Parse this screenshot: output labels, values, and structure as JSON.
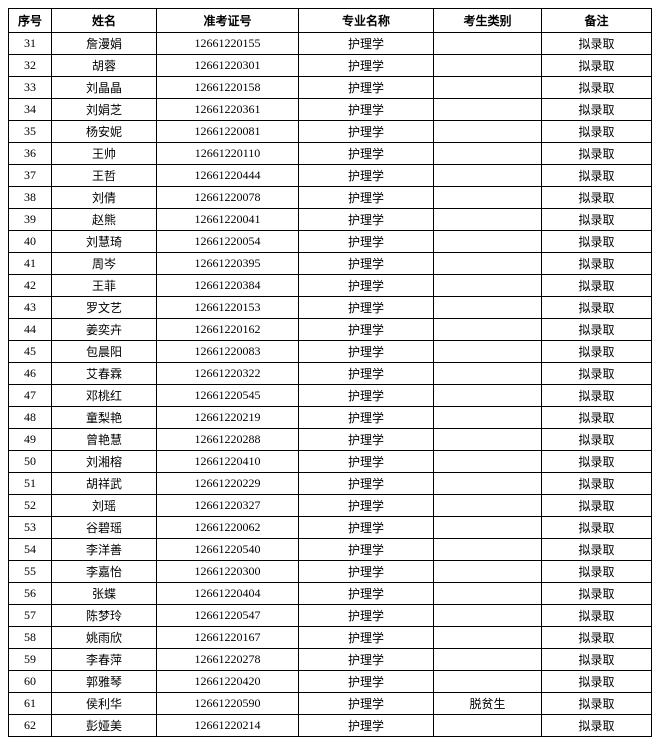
{
  "table": {
    "columns": [
      {
        "key": "seq",
        "label": "序号",
        "class": "col-seq"
      },
      {
        "key": "name",
        "label": "姓名",
        "class": "col-name"
      },
      {
        "key": "id",
        "label": "准考证号",
        "class": "col-id"
      },
      {
        "key": "major",
        "label": "专业名称",
        "class": "col-major"
      },
      {
        "key": "category",
        "label": "考生类别",
        "class": "col-category"
      },
      {
        "key": "remark",
        "label": "备注",
        "class": "col-remark"
      }
    ],
    "rows": [
      {
        "seq": "31",
        "name": "詹漫娟",
        "id": "12661220155",
        "major": "护理学",
        "category": "",
        "remark": "拟录取"
      },
      {
        "seq": "32",
        "name": "胡蓉",
        "id": "12661220301",
        "major": "护理学",
        "category": "",
        "remark": "拟录取"
      },
      {
        "seq": "33",
        "name": "刘晶晶",
        "id": "12661220158",
        "major": "护理学",
        "category": "",
        "remark": "拟录取"
      },
      {
        "seq": "34",
        "name": "刘娟芝",
        "id": "12661220361",
        "major": "护理学",
        "category": "",
        "remark": "拟录取"
      },
      {
        "seq": "35",
        "name": "杨安妮",
        "id": "12661220081",
        "major": "护理学",
        "category": "",
        "remark": "拟录取"
      },
      {
        "seq": "36",
        "name": "王帅",
        "id": "12661220110",
        "major": "护理学",
        "category": "",
        "remark": "拟录取"
      },
      {
        "seq": "37",
        "name": "王哲",
        "id": "12661220444",
        "major": "护理学",
        "category": "",
        "remark": "拟录取"
      },
      {
        "seq": "38",
        "name": "刘倩",
        "id": "12661220078",
        "major": "护理学",
        "category": "",
        "remark": "拟录取"
      },
      {
        "seq": "39",
        "name": "赵熊",
        "id": "12661220041",
        "major": "护理学",
        "category": "",
        "remark": "拟录取"
      },
      {
        "seq": "40",
        "name": "刘慧琦",
        "id": "12661220054",
        "major": "护理学",
        "category": "",
        "remark": "拟录取"
      },
      {
        "seq": "41",
        "name": "周岑",
        "id": "12661220395",
        "major": "护理学",
        "category": "",
        "remark": "拟录取"
      },
      {
        "seq": "42",
        "name": "王菲",
        "id": "12661220384",
        "major": "护理学",
        "category": "",
        "remark": "拟录取"
      },
      {
        "seq": "43",
        "name": "罗文艺",
        "id": "12661220153",
        "major": "护理学",
        "category": "",
        "remark": "拟录取"
      },
      {
        "seq": "44",
        "name": "姜奕卉",
        "id": "12661220162",
        "major": "护理学",
        "category": "",
        "remark": "拟录取"
      },
      {
        "seq": "45",
        "name": "包晨阳",
        "id": "12661220083",
        "major": "护理学",
        "category": "",
        "remark": "拟录取"
      },
      {
        "seq": "46",
        "name": "艾春霖",
        "id": "12661220322",
        "major": "护理学",
        "category": "",
        "remark": "拟录取"
      },
      {
        "seq": "47",
        "name": "邓桃红",
        "id": "12661220545",
        "major": "护理学",
        "category": "",
        "remark": "拟录取"
      },
      {
        "seq": "48",
        "name": "童梨艳",
        "id": "12661220219",
        "major": "护理学",
        "category": "",
        "remark": "拟录取"
      },
      {
        "seq": "49",
        "name": "曾艳慧",
        "id": "12661220288",
        "major": "护理学",
        "category": "",
        "remark": "拟录取"
      },
      {
        "seq": "50",
        "name": "刘湘榕",
        "id": "12661220410",
        "major": "护理学",
        "category": "",
        "remark": "拟录取"
      },
      {
        "seq": "51",
        "name": "胡祥武",
        "id": "12661220229",
        "major": "护理学",
        "category": "",
        "remark": "拟录取"
      },
      {
        "seq": "52",
        "name": "刘瑶",
        "id": "12661220327",
        "major": "护理学",
        "category": "",
        "remark": "拟录取"
      },
      {
        "seq": "53",
        "name": "谷碧瑶",
        "id": "12661220062",
        "major": "护理学",
        "category": "",
        "remark": "拟录取"
      },
      {
        "seq": "54",
        "name": "李洋善",
        "id": "12661220540",
        "major": "护理学",
        "category": "",
        "remark": "拟录取"
      },
      {
        "seq": "55",
        "name": "李嘉怡",
        "id": "12661220300",
        "major": "护理学",
        "category": "",
        "remark": "拟录取"
      },
      {
        "seq": "56",
        "name": "张蝶",
        "id": "12661220404",
        "major": "护理学",
        "category": "",
        "remark": "拟录取"
      },
      {
        "seq": "57",
        "name": "陈梦玲",
        "id": "12661220547",
        "major": "护理学",
        "category": "",
        "remark": "拟录取"
      },
      {
        "seq": "58",
        "name": "姚雨欣",
        "id": "12661220167",
        "major": "护理学",
        "category": "",
        "remark": "拟录取"
      },
      {
        "seq": "59",
        "name": "李春萍",
        "id": "12661220278",
        "major": "护理学",
        "category": "",
        "remark": "拟录取"
      },
      {
        "seq": "60",
        "name": "郭雅琴",
        "id": "12661220420",
        "major": "护理学",
        "category": "",
        "remark": "拟录取"
      },
      {
        "seq": "61",
        "name": "侯利华",
        "id": "12661220590",
        "major": "护理学",
        "category": "脱贫生",
        "remark": "拟录取"
      },
      {
        "seq": "62",
        "name": "彭娅美",
        "id": "12661220214",
        "major": "护理学",
        "category": "",
        "remark": "拟录取"
      }
    ]
  }
}
